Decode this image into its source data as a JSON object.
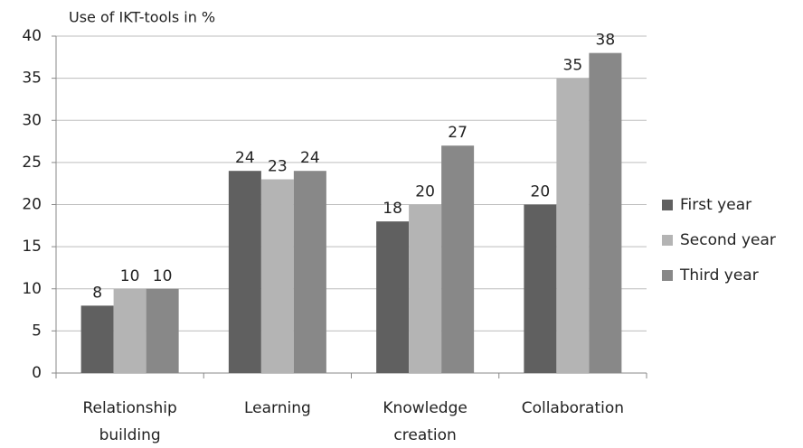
{
  "chart_data": {
    "type": "bar",
    "title": "Use of IKT-tools in %",
    "categories": [
      "Relationship building",
      "Learning",
      "Knowledge creation",
      "Collaboration"
    ],
    "series": [
      {
        "name": "First year",
        "color": "#606060",
        "values": [
          8,
          24,
          18,
          20
        ]
      },
      {
        "name": "Second year",
        "color": "#b4b4b4",
        "values": [
          10,
          23,
          20,
          35
        ]
      },
      {
        "name": "Third year",
        "color": "#888888",
        "values": [
          10,
          24,
          27,
          38
        ]
      }
    ],
    "ylim": [
      0,
      40
    ],
    "yticks": [
      0,
      5,
      10,
      15,
      20,
      25,
      30,
      35,
      40
    ],
    "grid": true,
    "legend": "right"
  }
}
